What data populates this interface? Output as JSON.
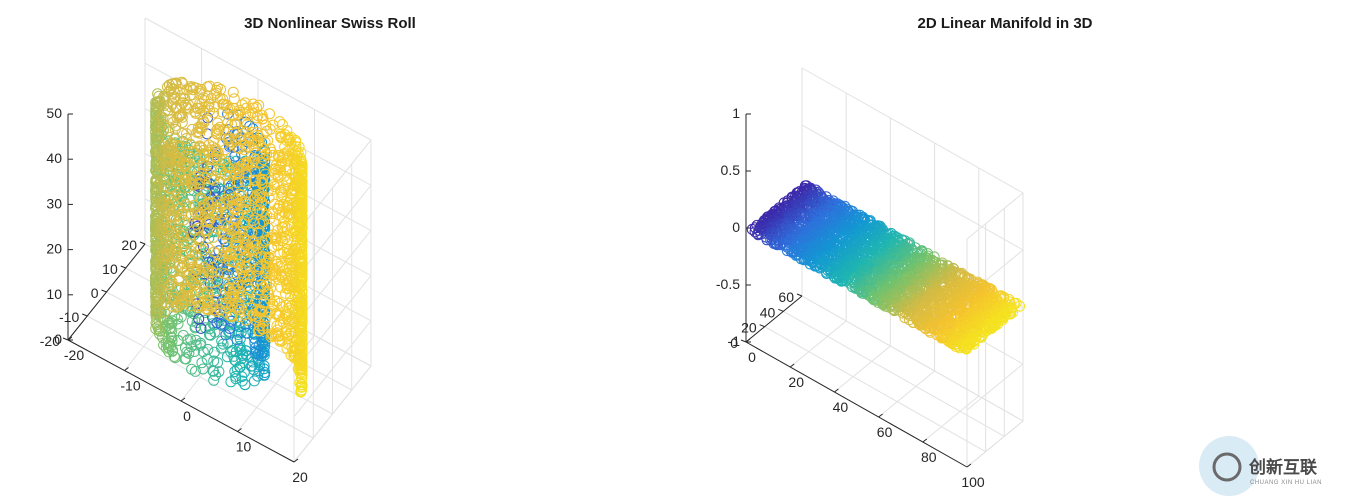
{
  "chart_data": [
    {
      "type": "scatter",
      "title": "3D Nonlinear Swiss Roll",
      "xlabel": "",
      "ylabel": "",
      "zlabel": "",
      "xlim": [
        -20,
        20
      ],
      "ylim": [
        -20,
        20
      ],
      "zlim": [
        0,
        50
      ],
      "x_ticks": [
        "-20",
        "-10",
        "0",
        "10",
        "20"
      ],
      "y_ticks": [
        "-20",
        "-10",
        "0",
        "10",
        "20"
      ],
      "z_ticks": [
        "0",
        "10",
        "20",
        "30",
        "40",
        "50"
      ],
      "marker": "open-circle",
      "colormap": [
        "#3d26a8",
        "#2f6fdc",
        "#1398d3",
        "#20b6b0",
        "#70c26e",
        "#d3bb45",
        "#f5c32e",
        "#f5e51f"
      ],
      "grid": true,
      "surface": {
        "shape": "swiss-roll",
        "t_range": [
          4.71,
          14.14
        ],
        "height_range": [
          0,
          50
        ],
        "color_by": "t"
      }
    },
    {
      "type": "scatter",
      "title": "2D Linear Manifold in 3D",
      "xlabel": "",
      "ylabel": "",
      "zlabel": "",
      "xlim": [
        0,
        100
      ],
      "ylim": [
        0,
        60
      ],
      "zlim": [
        -1,
        1
      ],
      "x_ticks": [
        "0",
        "20",
        "40",
        "60",
        "80",
        "100"
      ],
      "y_ticks": [
        "0",
        "20",
        "40",
        "60"
      ],
      "z_ticks": [
        "-1",
        "-0.5",
        "0",
        "0.5",
        "1"
      ],
      "marker": "open-circle",
      "colormap": [
        "#3d26a8",
        "#2f6fdc",
        "#1398d3",
        "#20b6b0",
        "#70c26e",
        "#d3bb45",
        "#f5c32e",
        "#f5e51f"
      ],
      "grid": true,
      "surface": {
        "shape": "plane",
        "z_value": 0,
        "x_range": [
          0,
          100
        ],
        "y_range": [
          0,
          60
        ],
        "color_by": "x"
      }
    }
  ],
  "watermark": {
    "name": "创新互联",
    "sub": "CHUANG XIN HU LIAN"
  }
}
